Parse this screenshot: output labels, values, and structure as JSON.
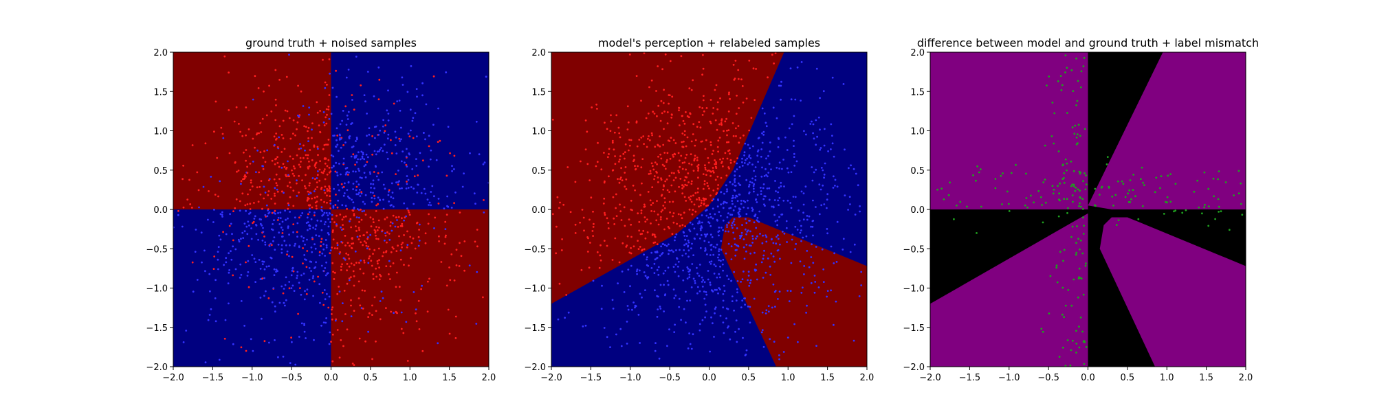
{
  "chart_data": [
    {
      "type": "heatmap",
      "panel": "left",
      "title": "ground truth + noised samples",
      "xlim": [
        -2.0,
        2.0
      ],
      "ylim": [
        -2.0,
        2.0
      ],
      "xticks": [
        "−2.0",
        "−1.5",
        "−1.0",
        "−0.5",
        "0.0",
        "0.5",
        "1.0",
        "1.5",
        "2.0"
      ],
      "yticks": [
        "−2.0",
        "−1.5",
        "−1.0",
        "−0.5",
        "0.0",
        "0.5",
        "1.0",
        "1.5",
        "2.0"
      ],
      "tick_values": [
        -2.0,
        -1.5,
        -1.0,
        -0.5,
        0.0,
        0.5,
        1.0,
        1.5,
        2.0
      ],
      "regions": [
        {
          "x": [
            -2,
            0
          ],
          "y": [
            0,
            2
          ],
          "color": "#800000"
        },
        {
          "x": [
            0,
            2
          ],
          "y": [
            0,
            2
          ],
          "color": "#000080"
        },
        {
          "x": [
            -2,
            0
          ],
          "y": [
            -2,
            0
          ],
          "color": "#000080"
        },
        {
          "x": [
            0,
            2
          ],
          "y": [
            -2,
            0
          ],
          "color": "#800000"
        }
      ],
      "scatter": {
        "count": 1400,
        "colors": {
          "red": "#ff1f1f",
          "blue": "#3333ff"
        },
        "seed": 11
      },
      "grid": false
    },
    {
      "type": "heatmap",
      "panel": "middle",
      "title": "model's perception + relabeled samples",
      "xlim": [
        -2.0,
        2.0
      ],
      "ylim": [
        -2.0,
        2.0
      ],
      "xticks": [
        "−2.0",
        "−1.5",
        "−1.0",
        "−0.5",
        "0.0",
        "0.5",
        "1.0",
        "1.5",
        "2.0"
      ],
      "yticks": [
        "−2.0",
        "−1.5",
        "−1.0",
        "−0.5",
        "0.0",
        "0.5",
        "1.0",
        "1.5",
        "2.0"
      ],
      "tick_values": [
        -2.0,
        -1.5,
        -1.0,
        -0.5,
        0.0,
        0.5,
        1.0,
        1.5,
        2.0
      ],
      "background_color": "#000080",
      "regions": [
        {
          "polygon": [
            [
              -2,
              2
            ],
            [
              0.95,
              2
            ],
            [
              0.3,
              0.5
            ],
            [
              0.0,
              0.05
            ],
            [
              -0.4,
              -0.3
            ],
            [
              -2,
              -1.2
            ]
          ],
          "color": "#800000"
        },
        {
          "polygon": [
            [
              0.3,
              -0.1
            ],
            [
              0.2,
              -0.2
            ],
            [
              0.15,
              -0.5
            ],
            [
              0.85,
              -2
            ],
            [
              2,
              -2
            ],
            [
              2,
              -0.72
            ],
            [
              0.5,
              -0.1
            ]
          ],
          "color": "#800000"
        }
      ],
      "scatter": {
        "count": 1400,
        "colors": {
          "red": "#ff1f1f",
          "blue": "#3333ff"
        },
        "seed": 29
      },
      "grid": false
    },
    {
      "type": "heatmap",
      "panel": "right",
      "title": "difference between model and ground truth + label mismatch",
      "xlim": [
        -2.0,
        2.0
      ],
      "ylim": [
        -2.0,
        2.0
      ],
      "xticks": [
        "−2.0",
        "−1.5",
        "−1.0",
        "−0.5",
        "0.0",
        "0.5",
        "1.0",
        "1.5",
        "2.0"
      ],
      "yticks": [
        "−2.0",
        "−1.5",
        "−1.0",
        "−0.5",
        "0.0",
        "0.5",
        "1.0",
        "1.5",
        "2.0"
      ],
      "tick_values": [
        -2.0,
        -1.5,
        -1.0,
        -0.5,
        0.0,
        0.5,
        1.0,
        1.5,
        2.0
      ],
      "background_color": "#000000",
      "regions": [
        {
          "x": [
            -2,
            0
          ],
          "y": [
            0,
            2
          ],
          "color": "#800080"
        },
        {
          "polygon": [
            [
              0,
              0.05
            ],
            [
              0.95,
              2
            ],
            [
              2,
              2
            ],
            [
              2,
              0
            ],
            [
              0.3,
              0
            ]
          ],
          "color": "#800080"
        },
        {
          "polygon": [
            [
              -2,
              -1.2
            ],
            [
              -2,
              -2
            ],
            [
              0,
              -2
            ],
            [
              0,
              -0.05
            ]
          ],
          "color": "#800080"
        },
        {
          "polygon": [
            [
              0.3,
              -0.1
            ],
            [
              0.2,
              -0.2
            ],
            [
              0.15,
              -0.5
            ],
            [
              0.85,
              -2
            ],
            [
              2,
              -2
            ],
            [
              2,
              -0.72
            ],
            [
              0.5,
              -0.1
            ]
          ],
          "color": "#800080"
        }
      ],
      "scatter": {
        "count": 260,
        "colors": {
          "mismatch": "#1fa01f"
        },
        "seed": 5
      },
      "grid": false
    }
  ]
}
